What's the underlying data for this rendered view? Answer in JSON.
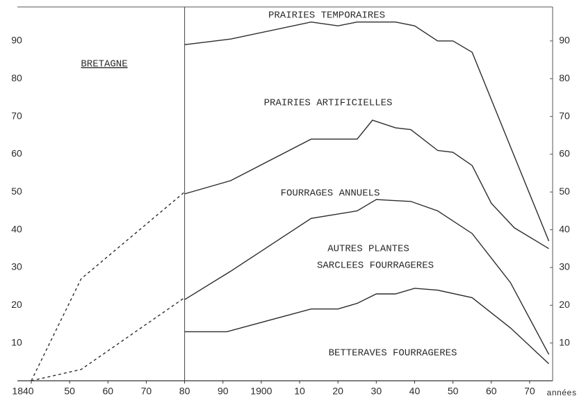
{
  "chart_data": {
    "type": "line",
    "xlabel": "années",
    "xlim": [
      1840,
      1976
    ],
    "ylim": [
      0,
      99
    ],
    "xticks": [
      {
        "value": 1840,
        "label": "1840"
      },
      {
        "value": 1850,
        "label": "50"
      },
      {
        "value": 1860,
        "label": "60"
      },
      {
        "value": 1870,
        "label": "70"
      },
      {
        "value": 1880,
        "label": "80"
      },
      {
        "value": 1890,
        "label": "90"
      },
      1900,
      {
        "value": 1910,
        "label": "10"
      },
      {
        "value": 1920,
        "label": "20"
      },
      {
        "value": 1930,
        "label": "30"
      },
      {
        "value": 1940,
        "label": "40"
      },
      {
        "value": 1950,
        "label": "50"
      },
      {
        "value": 1960,
        "label": "60"
      },
      {
        "value": 1970,
        "label": "70"
      }
    ],
    "yticks": [
      10,
      20,
      30,
      40,
      50,
      60,
      70,
      80,
      90
    ],
    "series": [
      {
        "color": "#2b2b2b",
        "dashed": false,
        "x": [
          1880,
          1892,
          1913,
          1920,
          1925,
          1935,
          1940,
          1946,
          1950,
          1955,
          1965,
          1975
        ],
        "values": [
          89,
          90.5,
          95,
          94,
          95,
          95,
          94,
          90,
          90,
          87,
          62,
          37
        ]
      },
      {
        "color": "#2b2b2b",
        "dashed": true,
        "x": [
          1840,
          1853,
          1880
        ],
        "values": [
          0,
          27,
          50
        ]
      },
      {
        "color": "#2b2b2b",
        "dashed": false,
        "x": [
          1880,
          1892,
          1913,
          1925,
          1929,
          1935,
          1939,
          1946,
          1950,
          1955,
          1960,
          1966,
          1975
        ],
        "values": [
          49.5,
          53,
          64,
          64,
          69,
          67,
          66.5,
          61,
          60.5,
          57,
          47,
          40.5,
          35
        ]
      },
      {
        "color": "#2b2b2b",
        "dashed": true,
        "x": [
          1840,
          1853,
          1880
        ],
        "values": [
          0,
          3,
          22
        ]
      },
      {
        "color": "#2b2b2b",
        "dashed": false,
        "x": [
          1880,
          1892,
          1913,
          1925,
          1930,
          1939,
          1946,
          1955,
          1965,
          1975
        ],
        "values": [
          21.5,
          29,
          43,
          45,
          48,
          47.5,
          45,
          39,
          26,
          7
        ]
      },
      {
        "color": "#2b2b2b",
        "dashed": false,
        "x": [
          1880,
          1891,
          1913,
          1920,
          1925,
          1930,
          1935,
          1940,
          1946,
          1955,
          1965,
          1975
        ],
        "values": [
          13,
          13,
          19,
          19,
          20.5,
          23,
          23,
          24.5,
          24,
          22,
          14,
          4.5
        ]
      }
    ],
    "annotations": [
      "BRETAGNE",
      "PRAIRIES TEMPORAIRES",
      "PRAIRIES ARTIFICIELLES",
      "FOURRAGES ANNUELS",
      "AUTRES PLANTES",
      "SARCLEES FOURRAGERES",
      "BETTERAVES FOURRAGERES"
    ]
  }
}
